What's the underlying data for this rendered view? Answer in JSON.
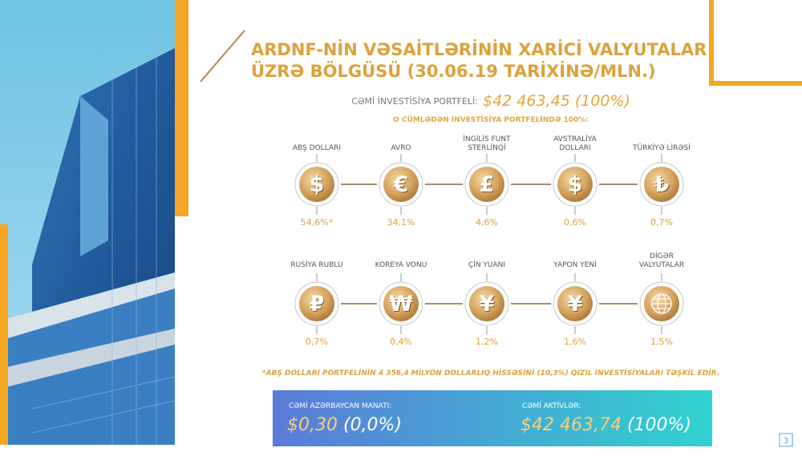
{
  "header": {
    "title_lines": [
      "ARDNF-NİN VƏSAİTLƏRİNİN XARİCİ VALYUTALAR",
      "ÜZRƏ BÖLGÜSÜ (30.06.19 TARİXİNƏ/MLN.)"
    ],
    "total_label": "CƏMİ İNVESTİSİYA PORTFELİ:",
    "total_value": "$42 463,45 (100%)",
    "subtitle": "O CÜMLƏDƏN İNVESTİSİYA PORTFELİNDƏ 100%:"
  },
  "currencies": [
    {
      "name_lines": [
        "ABŞ DOLLARI"
      ],
      "symbol": "$",
      "share": "54,6%*"
    },
    {
      "name_lines": [
        "AVRO"
      ],
      "symbol": "€",
      "share": "34,1%"
    },
    {
      "name_lines": [
        "İNGİLİS FUNT",
        "STERLİNQİ"
      ],
      "symbol": "£",
      "share": "4,6%"
    },
    {
      "name_lines": [
        "AVSTRALİYA",
        "DOLLARI"
      ],
      "symbol": "$",
      "share": "0,6%"
    },
    {
      "name_lines": [
        "TÜRKİYƏ LİRƏSİ"
      ],
      "symbol": "₺",
      "share": "0,7%"
    },
    {
      "name_lines": [
        "RUSİYA RUBLU"
      ],
      "symbol": "₽",
      "share": "0,7%"
    },
    {
      "name_lines": [
        "KOREYA VONU"
      ],
      "symbol": "₩",
      "share": "0,4%"
    },
    {
      "name_lines": [
        "ÇİN YUANI"
      ],
      "symbol": "¥",
      "share": "1,2%"
    },
    {
      "name_lines": [
        "YAPON YENİ"
      ],
      "symbol": "¥",
      "share": "1,6%"
    },
    {
      "name_lines": [
        "DİGƏR",
        "VALYUTALAR"
      ],
      "share": "1,5%"
    }
  ],
  "note": "*ABŞ DOLLARI PORTFELİNİN 4 356,4 MİLYON DOLLARLIQ HİSSƏSİNİ (10,3%) QIZIL İNVESTİSİYALARI TƏŞKİL EDİR.",
  "footer": [
    {
      "label": "CƏMİ AZƏRBAYCAN MANATI:",
      "value": "$0,30",
      "share": "(0,0%)"
    },
    {
      "label": "CƏMİ AKTİVLƏR:",
      "value": "$42 463,74",
      "share": "(100%)"
    }
  ],
  "page_number": "3"
}
